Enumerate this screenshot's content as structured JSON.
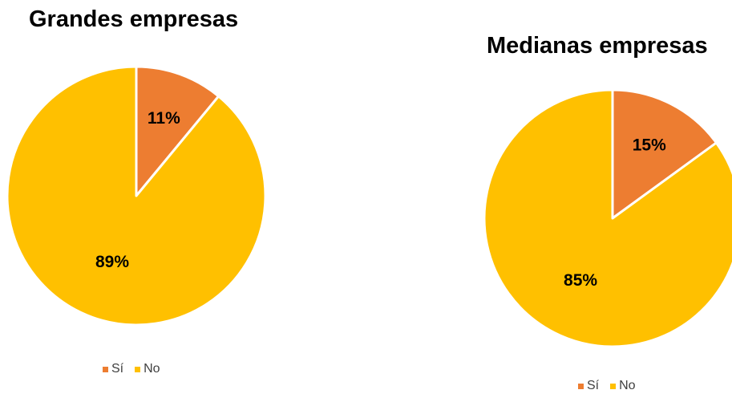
{
  "chart_data": [
    {
      "type": "pie",
      "title": "Grandes empresas",
      "categories": [
        "Sí",
        "No"
      ],
      "values": [
        11,
        89
      ],
      "data_labels": [
        "11%",
        "89%"
      ],
      "colors": [
        "#ED7D31",
        "#FFC000"
      ],
      "legend_position": "bottom"
    },
    {
      "type": "pie",
      "title": "Medianas empresas",
      "categories": [
        "Sí",
        "No"
      ],
      "values": [
        15,
        85
      ],
      "data_labels": [
        "15%",
        "85%"
      ],
      "colors": [
        "#ED7D31",
        "#FFC000"
      ],
      "legend_position": "bottom"
    }
  ]
}
